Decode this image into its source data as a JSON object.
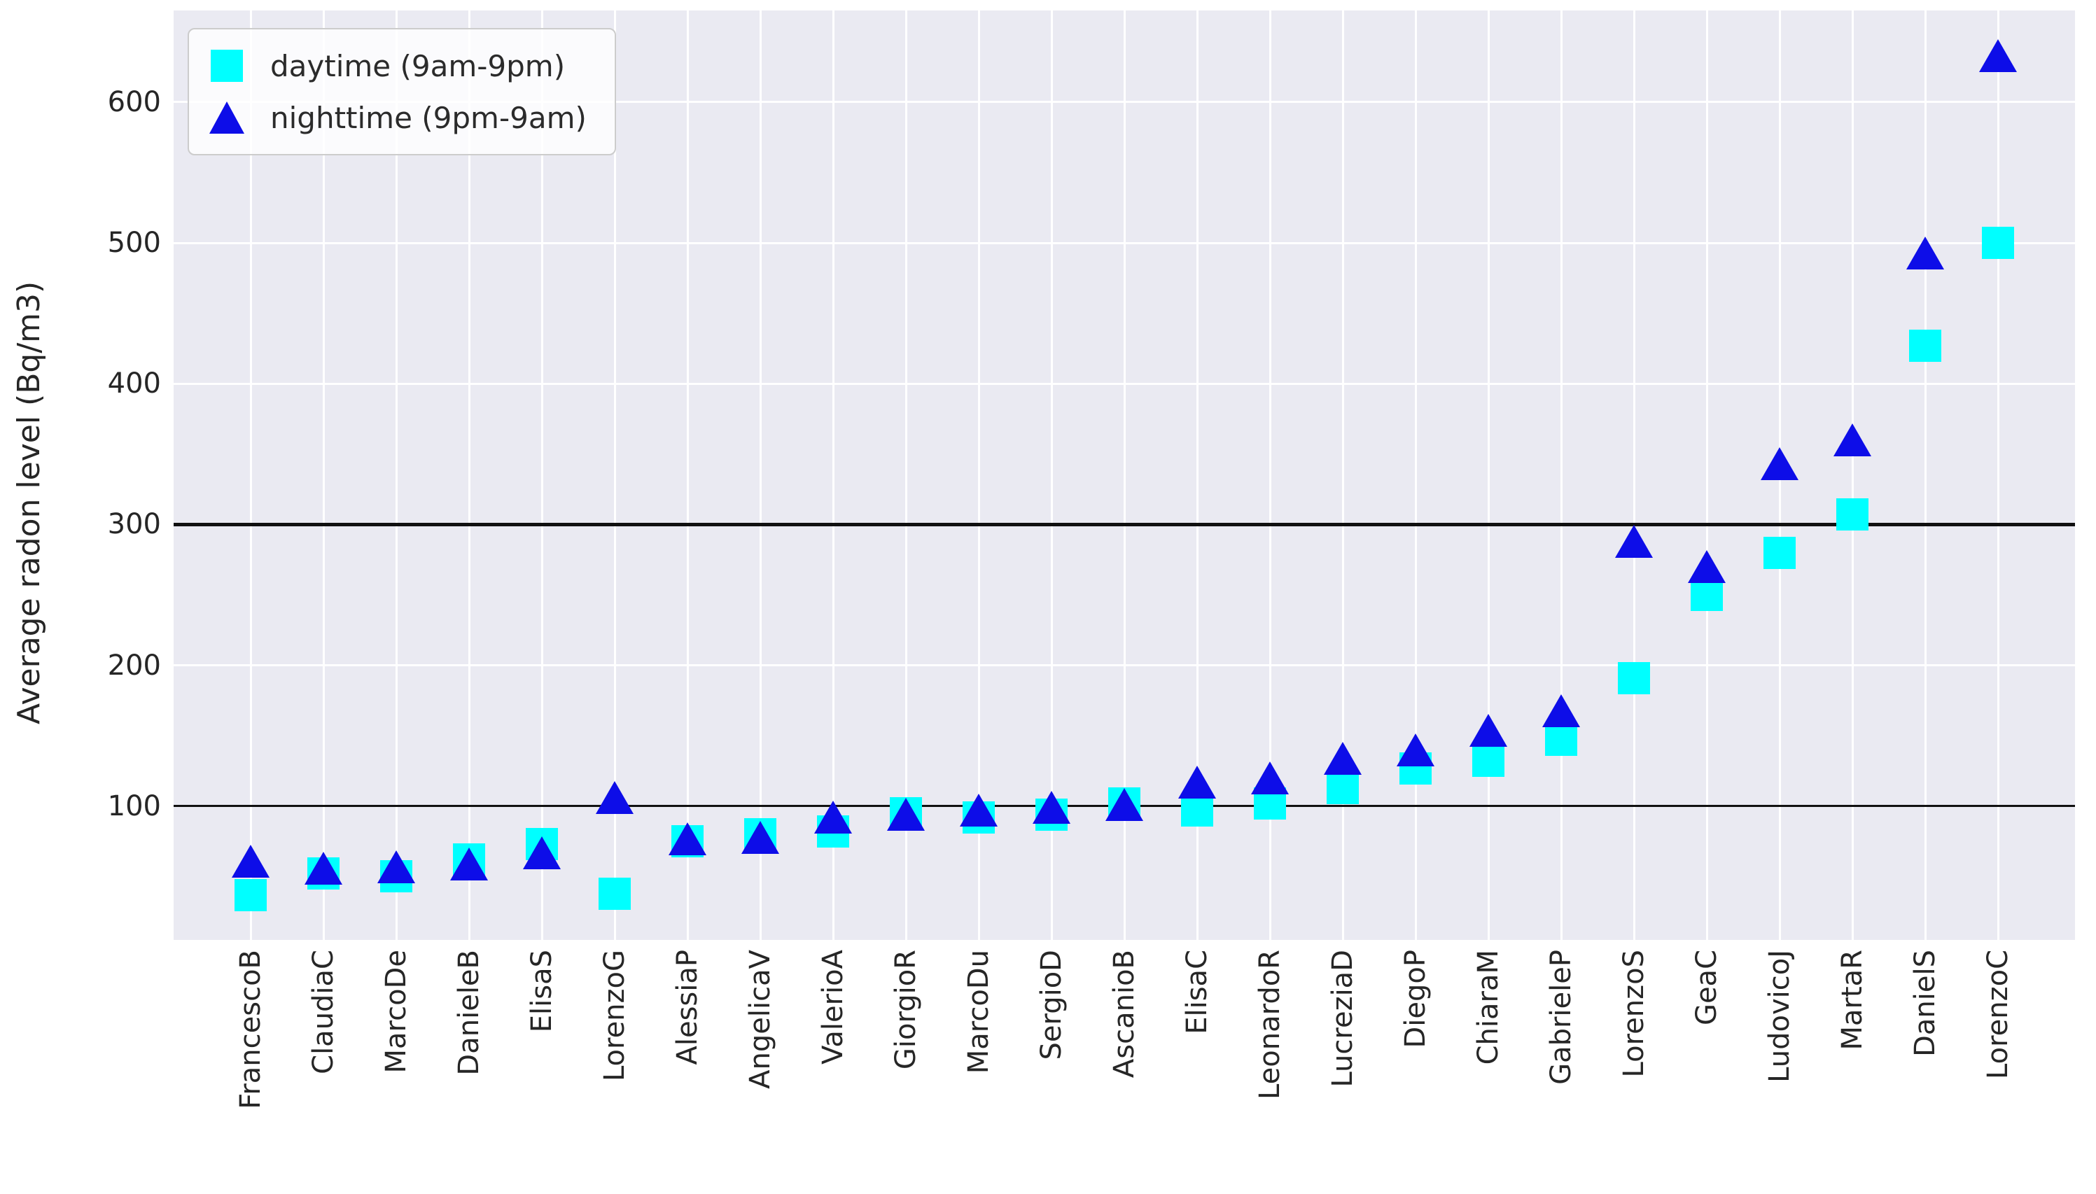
{
  "chart_data": {
    "type": "scatter",
    "title": "",
    "xlabel": "",
    "ylabel": "Average radon level (Bq/m3)",
    "categories": [
      "FrancescoB",
      "ClaudiaC",
      "MarcoDe",
      "DanieleB",
      "ElisaS",
      "LorenzoG",
      "AlessiaP",
      "AngelicaV",
      "ValerioA",
      "GiorgioR",
      "MarcoDu",
      "SergioD",
      "AscanioB",
      "ElisaC",
      "LeonardoR",
      "LucreziaD",
      "DiegoP",
      "ChiaraM",
      "GabrieleP",
      "LorenzoS",
      "GeaC",
      "LudovicoJ",
      "MartaR",
      "DanielS",
      "LorenzoC"
    ],
    "series": [
      {
        "name": "daytime (9am-9pm)",
        "marker": "square",
        "color": "#00ffff",
        "values": [
          37,
          52,
          50,
          62,
          73,
          38,
          75,
          80,
          82,
          95,
          92,
          94,
          102,
          97,
          102,
          113,
          127,
          132,
          147,
          191,
          250,
          280,
          307,
          427,
          500
        ]
      },
      {
        "name": "nighttime (9pm-9am)",
        "marker": "triangle-up",
        "color": "#0d0de8",
        "values": [
          61,
          56,
          57,
          59,
          67,
          106,
          77,
          78,
          92,
          94,
          97,
          99,
          101,
          117,
          120,
          134,
          140,
          154,
          168,
          288,
          270,
          343,
          360,
          493,
          633
        ]
      }
    ],
    "yticks": [
      100,
      200,
      300,
      400,
      500,
      600
    ],
    "ylim": [
      5,
      665
    ],
    "reference_lines": [
      {
        "y": 100,
        "color": "#111111",
        "width": 3
      },
      {
        "y": 300,
        "color": "#111111",
        "width": 5
      }
    ],
    "grid": true,
    "grid_color": "#ffffff",
    "plot_background": "#eaeaf2",
    "legend_position": "upper left",
    "tick_color": "#262626"
  }
}
